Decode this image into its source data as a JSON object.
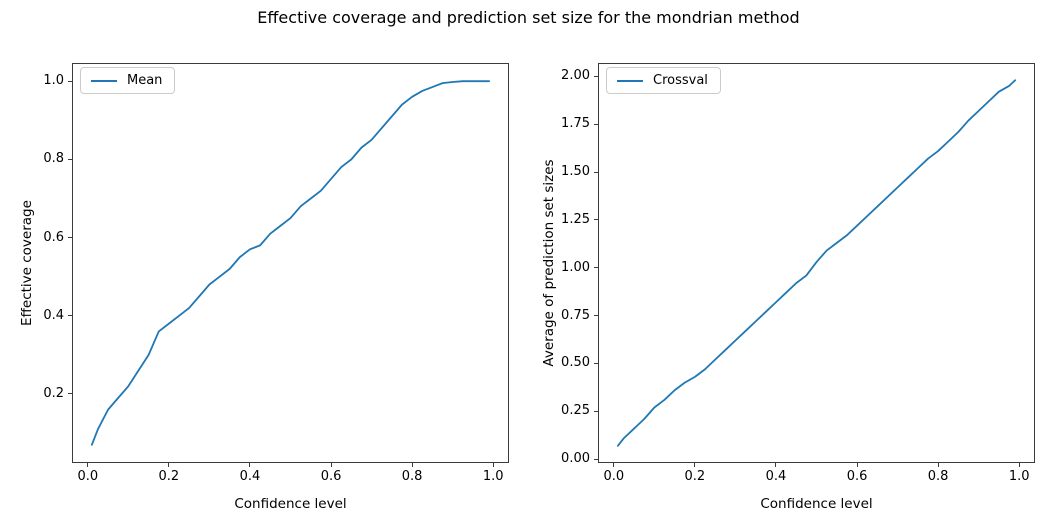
{
  "figure": {
    "title": "Effective coverage and prediction set size for the mondrian method",
    "background": "#ffffff",
    "text_color": "#000000",
    "spine_color": "#3b3b3b",
    "accent_line_color": "#1f77b4"
  },
  "chart_data": [
    {
      "type": "line",
      "title": "",
      "xlabel": "Confidence level",
      "ylabel": "Effective coverage",
      "grid": false,
      "legend_position": "upper left",
      "xlim": [
        -0.039,
        1.039
      ],
      "ylim": [
        0.0235,
        1.0465
      ],
      "xticks": {
        "values": [
          0.0,
          0.2,
          0.4,
          0.6,
          0.8,
          1.0
        ],
        "labels": [
          "0.0",
          "0.2",
          "0.4",
          "0.6",
          "0.8",
          "1.0"
        ]
      },
      "yticks": {
        "values": [
          0.2,
          0.4,
          0.6,
          0.8,
          1.0
        ],
        "labels": [
          "0.2",
          "0.4",
          "0.6",
          "0.8",
          "1.0"
        ]
      },
      "series": [
        {
          "name": "Mean",
          "color": "#1f77b4",
          "x": [
            0.01,
            0.025,
            0.05,
            0.075,
            0.1,
            0.125,
            0.15,
            0.175,
            0.2,
            0.225,
            0.25,
            0.275,
            0.3,
            0.325,
            0.35,
            0.375,
            0.4,
            0.425,
            0.45,
            0.475,
            0.5,
            0.525,
            0.55,
            0.575,
            0.6,
            0.625,
            0.65,
            0.675,
            0.7,
            0.725,
            0.75,
            0.775,
            0.8,
            0.825,
            0.85,
            0.875,
            0.9,
            0.925,
            0.95,
            0.975,
            0.99
          ],
          "y": [
            0.07,
            0.11,
            0.16,
            0.19,
            0.22,
            0.26,
            0.3,
            0.36,
            0.38,
            0.4,
            0.42,
            0.45,
            0.48,
            0.5,
            0.52,
            0.55,
            0.57,
            0.58,
            0.61,
            0.63,
            0.65,
            0.68,
            0.7,
            0.72,
            0.75,
            0.78,
            0.8,
            0.83,
            0.85,
            0.88,
            0.91,
            0.94,
            0.96,
            0.975,
            0.985,
            0.995,
            0.998,
            1.0,
            1.0,
            1.0,
            1.0
          ]
        }
      ]
    },
    {
      "type": "line",
      "title": "",
      "xlabel": "Confidence level",
      "ylabel": "Average of prediction set sizes",
      "grid": false,
      "legend_position": "upper left",
      "xlim": [
        -0.039,
        1.039
      ],
      "ylim": [
        -0.02,
        2.07
      ],
      "xticks": {
        "values": [
          0.0,
          0.2,
          0.4,
          0.6,
          0.8,
          1.0
        ],
        "labels": [
          "0.0",
          "0.2",
          "0.4",
          "0.6",
          "0.8",
          "1.0"
        ]
      },
      "yticks": {
        "values": [
          0.0,
          0.25,
          0.5,
          0.75,
          1.0,
          1.25,
          1.5,
          1.75,
          2.0
        ],
        "labels": [
          "0.00",
          "0.25",
          "0.50",
          "0.75",
          "1.00",
          "1.25",
          "1.50",
          "1.75",
          "2.00"
        ]
      },
      "series": [
        {
          "name": "Crossval",
          "color": "#1f77b4",
          "x": [
            0.01,
            0.025,
            0.05,
            0.075,
            0.1,
            0.125,
            0.15,
            0.175,
            0.2,
            0.225,
            0.25,
            0.275,
            0.3,
            0.325,
            0.35,
            0.375,
            0.4,
            0.425,
            0.45,
            0.475,
            0.5,
            0.525,
            0.55,
            0.575,
            0.6,
            0.625,
            0.65,
            0.675,
            0.7,
            0.725,
            0.75,
            0.775,
            0.8,
            0.825,
            0.85,
            0.875,
            0.9,
            0.925,
            0.95,
            0.975,
            0.99
          ],
          "y": [
            0.07,
            0.11,
            0.16,
            0.21,
            0.27,
            0.31,
            0.36,
            0.4,
            0.43,
            0.47,
            0.52,
            0.57,
            0.62,
            0.67,
            0.72,
            0.77,
            0.82,
            0.87,
            0.92,
            0.96,
            1.03,
            1.09,
            1.13,
            1.17,
            1.22,
            1.27,
            1.32,
            1.37,
            1.42,
            1.47,
            1.52,
            1.57,
            1.61,
            1.66,
            1.71,
            1.77,
            1.82,
            1.87,
            1.92,
            1.95,
            1.98
          ]
        }
      ]
    }
  ]
}
